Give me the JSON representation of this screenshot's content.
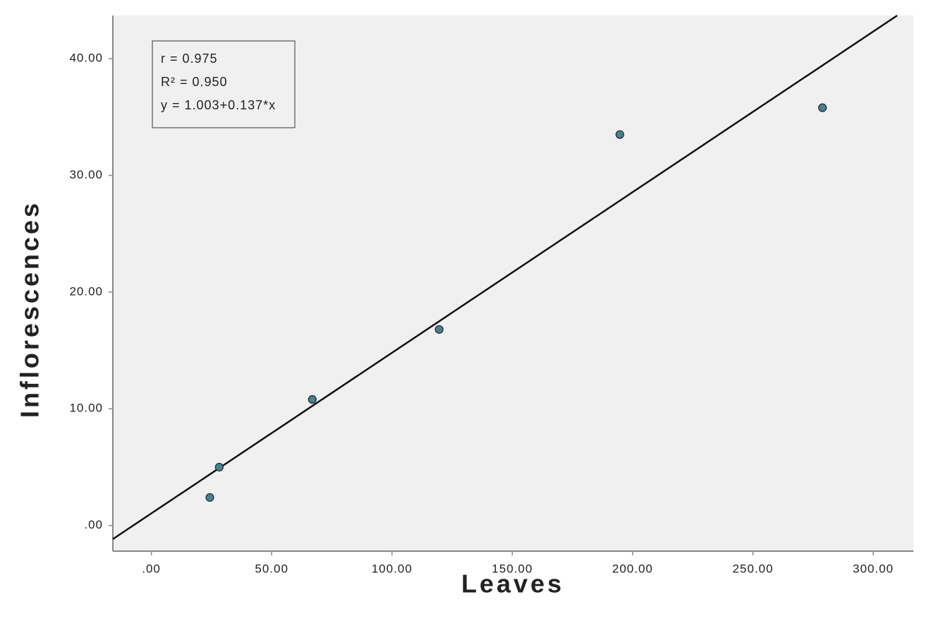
{
  "chart_data": {
    "type": "scatter",
    "x_label": "Leaves",
    "y_label": "Inflorescences",
    "annotations": [
      "r = 0.975",
      "R² = 0.950",
      "y = 1.003+0.137*x"
    ],
    "x": [
      24.3,
      28.2,
      66.9,
      119.6,
      194.7,
      278.9
    ],
    "values": [
      2.4,
      5.0,
      10.8,
      16.8,
      33.5,
      35.8
    ],
    "color": "#4b7f8e",
    "fit_line": true,
    "xlim": [
      -16,
      316.7
    ],
    "ylim": [
      -2.2,
      43.7
    ],
    "xticks": [
      {
        "value": 0,
        "label": ".00"
      },
      {
        "value": 50,
        "label": "50.00"
      },
      {
        "value": 100,
        "label": "100.00"
      },
      {
        "value": 150,
        "label": "150.00"
      },
      {
        "value": 200,
        "label": "200.00"
      },
      {
        "value": 250,
        "label": "250.00"
      },
      {
        "value": 300,
        "label": "300.00"
      }
    ],
    "yticks": [
      {
        "value": 0,
        "label": ".00"
      },
      {
        "value": 10,
        "label": "10.00"
      },
      {
        "value": 20,
        "label": "20.00"
      },
      {
        "value": 30,
        "label": "30.00"
      },
      {
        "value": 40,
        "label": "40.00"
      }
    ]
  }
}
